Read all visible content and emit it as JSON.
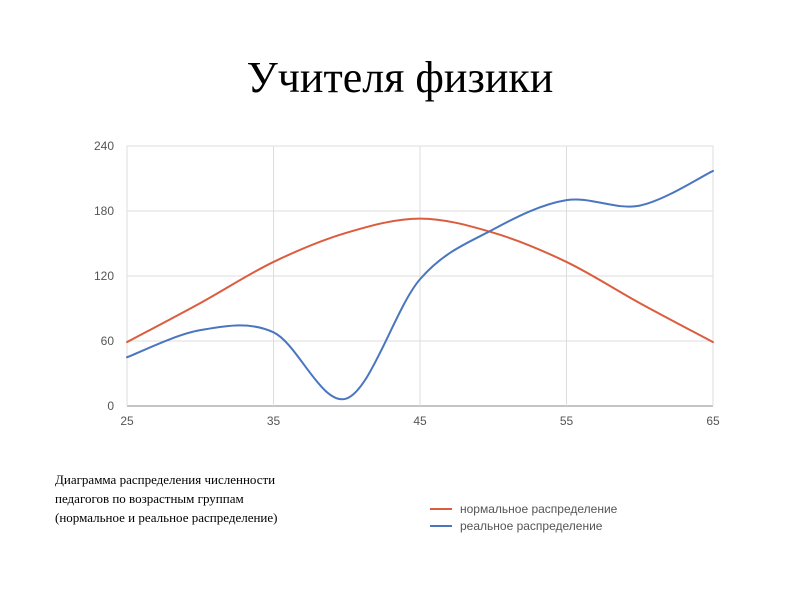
{
  "slide": {
    "title": "Учителя физики"
  },
  "caption": {
    "lines": [
      "Диаграмма распределения численности",
      "педагогов по возрастным группам",
      "(нормальное и реальное распределение)"
    ]
  },
  "chart_data": {
    "type": "line",
    "x_ticks": [
      25,
      35,
      45,
      55,
      65
    ],
    "y_ticks": [
      0,
      60,
      120,
      180,
      240
    ],
    "xlim": [
      25,
      65
    ],
    "ylim": [
      0,
      240
    ],
    "grid": true,
    "legend_position": "bottom-right",
    "series": [
      {
        "name": "нормальное распределение",
        "color": "#dc5c3e",
        "x": [
          25,
          30,
          35,
          40,
          45,
          50,
          55,
          60,
          65
        ],
        "y": [
          59,
          95,
          133,
          160,
          173,
          160,
          133,
          95,
          59
        ]
      },
      {
        "name": "реальное распределение",
        "color": "#4a76c0",
        "x": [
          25,
          30,
          35,
          40,
          45,
          50,
          55,
          60,
          65
        ],
        "y": [
          45,
          70,
          68,
          7,
          117,
          163,
          190,
          185,
          217
        ]
      }
    ]
  }
}
